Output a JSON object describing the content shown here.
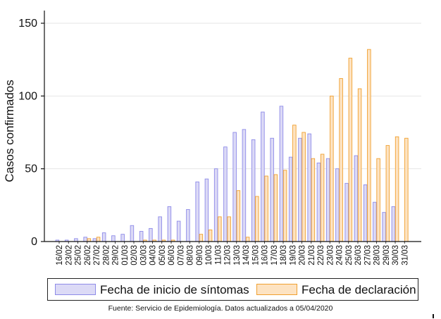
{
  "chart_data": {
    "type": "bar",
    "ylabel": "Casos confirmados",
    "ylim": [
      0,
      150
    ],
    "yticks": [
      0,
      50,
      100,
      150
    ],
    "grid": true,
    "legend_position": "bottom",
    "categories": [
      "16/02",
      "23/02",
      "25/02",
      "26/02",
      "27/02",
      "28/02",
      "29/02",
      "01/03",
      "02/03",
      "03/03",
      "04/03",
      "05/03",
      "06/03",
      "07/03",
      "08/03",
      "09/03",
      "10/03",
      "11/03",
      "12/03",
      "13/03",
      "14/03",
      "15/03",
      "16/03",
      "17/03",
      "18/03",
      "19/03",
      "20/03",
      "21/03",
      "22/03",
      "23/03",
      "24/03",
      "25/03",
      "26/03",
      "27/03",
      "28/03",
      "29/03",
      "30/03",
      "31/03"
    ],
    "series": [
      {
        "name": "Fecha de inicio de síntomas",
        "color": "#8e8be8",
        "fill": "#dcdaf6",
        "values": [
          1,
          1,
          2,
          3,
          2,
          6,
          4,
          5,
          11,
          7,
          9,
          17,
          24,
          14,
          22,
          41,
          43,
          50,
          65,
          75,
          77,
          70,
          89,
          71,
          93,
          58,
          71,
          74,
          54,
          57,
          50,
          40,
          59,
          39,
          27,
          20,
          24,
          0
        ]
      },
      {
        "name": "Fecha de declaración",
        "color": "#f0a030",
        "fill": "#fde3c2",
        "values": [
          0,
          0,
          0,
          2,
          3,
          0,
          0,
          0,
          0,
          1,
          1,
          1,
          1,
          0,
          0,
          5,
          8,
          17,
          17,
          35,
          3,
          31,
          45,
          46,
          49,
          80,
          75,
          57,
          60,
          100,
          112,
          126,
          105,
          132,
          57,
          66,
          72,
          71
        ]
      }
    ]
  },
  "legend": {
    "series1_label": "Fecha de inicio de síntomas",
    "series2_label": "Fecha de declaración"
  },
  "caption": "Fuente: Servicio de Epidemiología. Datos actualizados a 05/04/2020",
  "colors": {
    "series1_stroke": "#8e8be8",
    "series1_fill": "#dcdaf6",
    "series2_stroke": "#f0a030",
    "series2_fill": "#fde3c2",
    "grid": "#e6e6e6"
  }
}
